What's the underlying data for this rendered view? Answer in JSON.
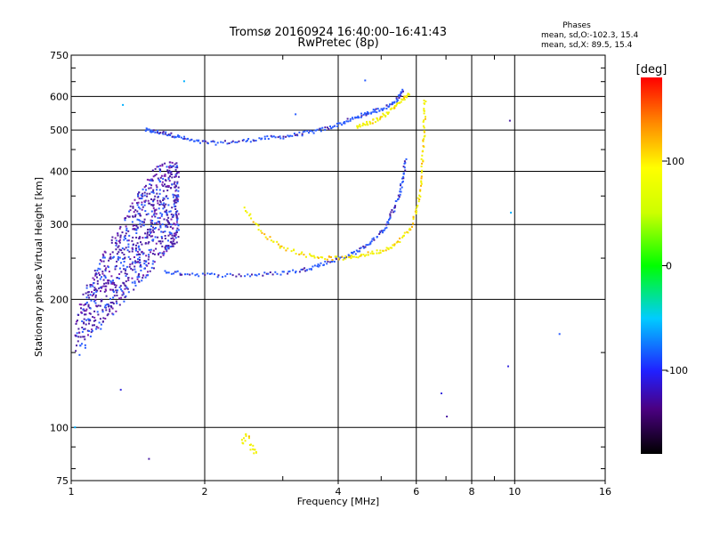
{
  "chart_data": {
    "type": "scatter",
    "title": "Tromsø 20160924 16:40:00–16:41:43",
    "subtitle": "RwPretec (8p)",
    "xlabel": "Frequency [MHz]",
    "ylabel": "Stationary phase Virtual Height [km]",
    "x_scale": "log",
    "y_scale": "log",
    "xlim": [
      1,
      16
    ],
    "ylim": [
      75,
      750
    ],
    "grid": true,
    "x_ticks": [
      1,
      2,
      4,
      6,
      8,
      10,
      16
    ],
    "x_tick_labels": [
      "1",
      "2",
      "4",
      "6",
      "8",
      "10",
      "16"
    ],
    "x_minor_ticks": [
      3,
      5,
      7,
      9
    ],
    "y_ticks": [
      75,
      100,
      200,
      300,
      400,
      500,
      600,
      750
    ],
    "y_tick_labels": [
      "75",
      "100",
      "200",
      "300",
      "400",
      "500",
      "600",
      "750"
    ],
    "phases_legend": {
      "title": "Phases",
      "line_o": "mean, sd,O:-102.3, 15.4",
      "line_x": "mean, sd,X: 89.5, 15.4"
    },
    "colorbar": {
      "label": "[deg]",
      "range": [
        -180,
        180
      ],
      "ticks": [
        100,
        0,
        -100
      ],
      "tick_labels": [
        "100",
        "0",
        "-100"
      ]
    },
    "series": [
      {
        "o_mode_high_trace": [
          [
            1.47,
            500
          ],
          [
            1.55,
            495
          ],
          [
            1.65,
            490
          ],
          [
            1.75,
            482
          ],
          [
            1.9,
            470
          ],
          [
            2.1,
            466
          ],
          [
            2.4,
            470
          ],
          [
            2.7,
            478
          ],
          [
            3.0,
            482
          ],
          [
            3.3,
            490
          ],
          [
            3.6,
            498
          ],
          [
            3.9,
            510
          ],
          [
            4.2,
            525
          ],
          [
            4.5,
            540
          ],
          [
            4.7,
            550
          ],
          [
            5.0,
            560
          ],
          [
            5.3,
            575
          ],
          [
            5.5,
            600
          ],
          [
            5.6,
            620
          ]
        ],
        "phase": -100
      },
      {
        "o_mode_f_trace": [
          [
            1.62,
            232
          ],
          [
            1.8,
            230
          ],
          [
            2.1,
            228
          ],
          [
            2.5,
            228
          ],
          [
            2.9,
            230
          ],
          [
            3.3,
            234
          ],
          [
            3.6,
            240
          ],
          [
            3.9,
            247
          ],
          [
            4.2,
            253
          ],
          [
            4.5,
            262
          ],
          [
            4.8,
            275
          ],
          [
            5.1,
            295
          ],
          [
            5.3,
            320
          ],
          [
            5.5,
            350
          ],
          [
            5.6,
            385
          ],
          [
            5.68,
            430
          ]
        ],
        "phase": -100
      },
      {
        "x_mode_trace": [
          [
            2.45,
            330
          ],
          [
            2.7,
            285
          ],
          [
            3.0,
            265
          ],
          [
            3.4,
            254
          ],
          [
            3.8,
            250
          ],
          [
            4.2,
            250
          ],
          [
            4.6,
            255
          ],
          [
            5.0,
            260
          ],
          [
            5.4,
            270
          ],
          [
            5.8,
            292
          ],
          [
            6.05,
            330
          ],
          [
            6.15,
            380
          ],
          [
            6.22,
            450
          ],
          [
            6.25,
            520
          ],
          [
            6.28,
            600
          ]
        ],
        "phase": 100
      },
      {
        "x_mode_high_trace": [
          [
            4.4,
            510
          ],
          [
            4.7,
            520
          ],
          [
            5.0,
            535
          ],
          [
            5.3,
            560
          ],
          [
            5.6,
            590
          ],
          [
            5.8,
            610
          ]
        ],
        "phase": 100
      },
      {
        "e_spread_echoes": {
          "x_range": [
            1.02,
            1.75
          ],
          "y_range": [
            140,
            420
          ]
        },
        "phase": -110
      },
      {
        "low_cluster": [
          [
            2.45,
            93
          ],
          [
            2.5,
            95
          ],
          [
            2.55,
            90
          ],
          [
            2.6,
            88
          ]
        ],
        "phase": 110
      },
      {
        "isolated_points": [
          [
            1.3,
            580
          ],
          [
            1.8,
            660
          ],
          [
            4.6,
            660
          ],
          [
            9.8,
            530
          ],
          [
            9.9,
            320
          ],
          [
            12.5,
            165
          ],
          [
            1.3,
            122
          ],
          [
            1.5,
            85
          ],
          [
            1.03,
            100
          ],
          [
            9.7,
            140
          ],
          [
            6.8,
            120
          ],
          [
            7.0,
            105
          ],
          [
            3.2,
            540
          ]
        ],
        "phase": -100
      }
    ]
  }
}
